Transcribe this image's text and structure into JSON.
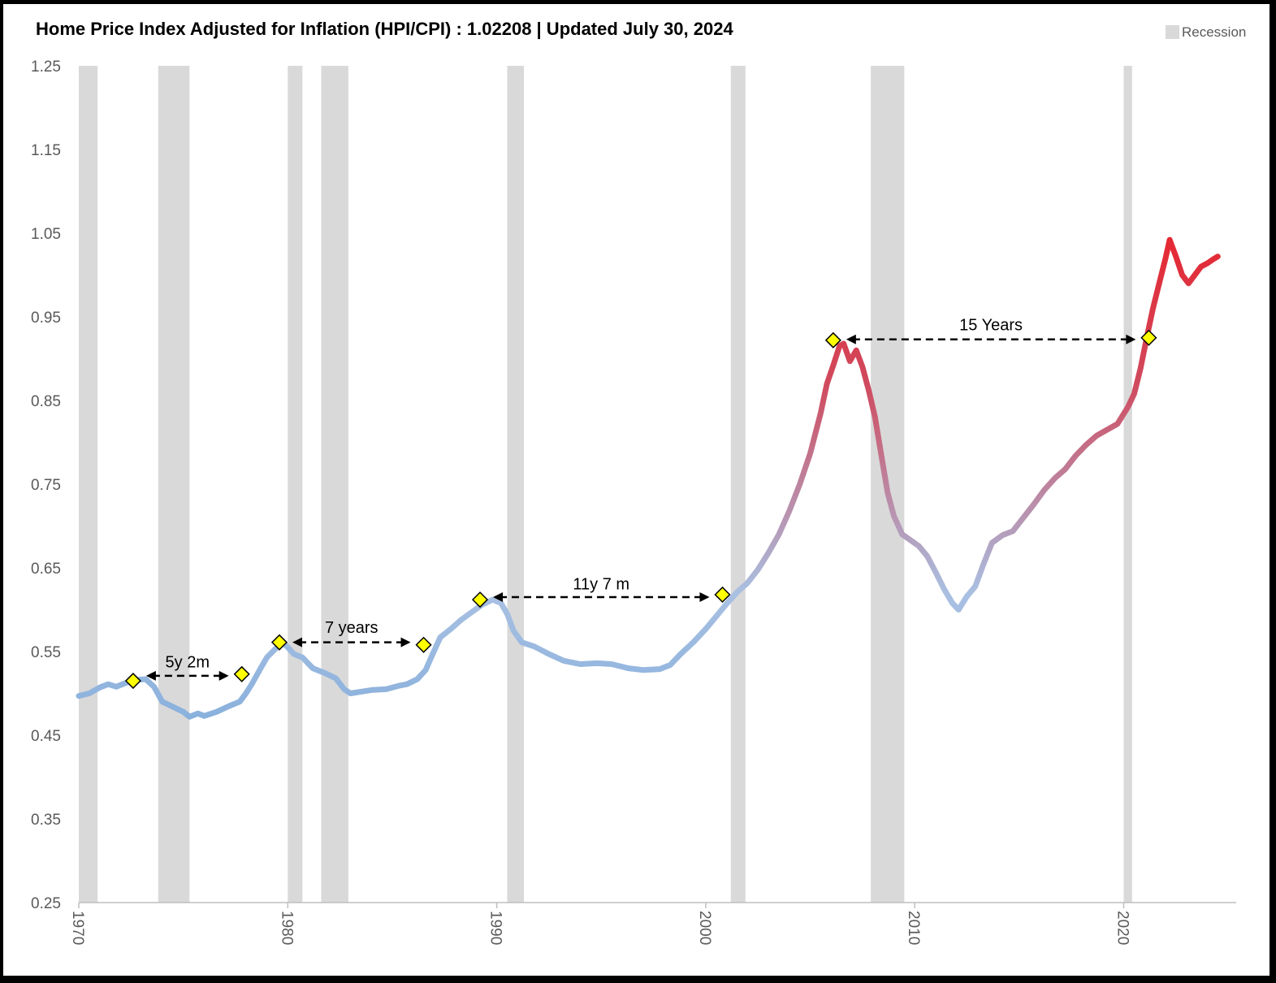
{
  "chart_data": {
    "type": "line",
    "title": "Home Price Index Adjusted for Inflation (HPI/CPI) : 1.02208 | Updated July 30, 2024",
    "xlabel": "",
    "ylabel": "",
    "xlim": [
      1970,
      2025.2
    ],
    "ylim": [
      0.25,
      1.25
    ],
    "y_ticks": [
      "0.25",
      "0.35",
      "0.45",
      "0.55",
      "0.65",
      "0.75",
      "0.85",
      "0.95",
      "1.05",
      "1.15",
      "1.25"
    ],
    "x_ticks": [
      "1970",
      "1980",
      "1990",
      "2000",
      "2010",
      "2020"
    ],
    "grid": false,
    "legend": {
      "position": "top-right",
      "entries": [
        "Recession"
      ]
    },
    "colors": {
      "recession": "#d9d9d9",
      "line_low": "#5b9bd5",
      "line_mid": "#a9c0e2",
      "line_high": "#ff0000",
      "marker_fill": "#ffff00",
      "marker_stroke": "#000000"
    },
    "recessions": [
      [
        1970.0,
        1970.9
      ],
      [
        1973.8,
        1975.3
      ],
      [
        1980.0,
        1980.7
      ],
      [
        1981.6,
        1982.9
      ],
      [
        1990.5,
        1991.3
      ],
      [
        2001.2,
        2001.9
      ],
      [
        2007.9,
        2009.5
      ],
      [
        2020.0,
        2020.4
      ]
    ],
    "series": [
      {
        "values": [
          [
            1970.0,
            0.497
          ],
          [
            1970.5,
            0.5
          ],
          [
            1971.0,
            0.507
          ],
          [
            1971.4,
            0.511
          ],
          [
            1971.8,
            0.508
          ],
          [
            1972.2,
            0.512
          ],
          [
            1972.7,
            0.516
          ],
          [
            1973.2,
            0.517
          ],
          [
            1973.6,
            0.508
          ],
          [
            1974.0,
            0.49
          ],
          [
            1974.5,
            0.484
          ],
          [
            1975.0,
            0.478
          ],
          [
            1975.3,
            0.472
          ],
          [
            1975.7,
            0.476
          ],
          [
            1976.0,
            0.473
          ],
          [
            1976.6,
            0.478
          ],
          [
            1977.2,
            0.485
          ],
          [
            1977.7,
            0.49
          ],
          [
            1978.0,
            0.5
          ],
          [
            1978.3,
            0.512
          ],
          [
            1978.7,
            0.53
          ],
          [
            1979.0,
            0.543
          ],
          [
            1979.4,
            0.553
          ],
          [
            1979.8,
            0.56
          ],
          [
            1980.0,
            0.555
          ],
          [
            1980.3,
            0.547
          ],
          [
            1980.7,
            0.543
          ],
          [
            1981.2,
            0.53
          ],
          [
            1981.8,
            0.524
          ],
          [
            1982.3,
            0.518
          ],
          [
            1982.7,
            0.505
          ],
          [
            1983.0,
            0.5
          ],
          [
            1983.5,
            0.502
          ],
          [
            1984.0,
            0.504
          ],
          [
            1984.7,
            0.505
          ],
          [
            1985.3,
            0.509
          ],
          [
            1985.7,
            0.511
          ],
          [
            1986.2,
            0.517
          ],
          [
            1986.6,
            0.528
          ],
          [
            1986.9,
            0.545
          ],
          [
            1987.3,
            0.567
          ],
          [
            1987.8,
            0.577
          ],
          [
            1988.3,
            0.588
          ],
          [
            1988.8,
            0.597
          ],
          [
            1989.3,
            0.606
          ],
          [
            1989.8,
            0.612
          ],
          [
            1990.2,
            0.608
          ],
          [
            1990.5,
            0.595
          ],
          [
            1990.8,
            0.575
          ],
          [
            1991.2,
            0.561
          ],
          [
            1991.8,
            0.556
          ],
          [
            1992.5,
            0.547
          ],
          [
            1993.2,
            0.539
          ],
          [
            1994.0,
            0.535
          ],
          [
            1994.8,
            0.536
          ],
          [
            1995.5,
            0.535
          ],
          [
            1996.3,
            0.53
          ],
          [
            1997.0,
            0.528
          ],
          [
            1997.8,
            0.529
          ],
          [
            1998.3,
            0.534
          ],
          [
            1998.8,
            0.547
          ],
          [
            1999.4,
            0.561
          ],
          [
            2000.0,
            0.577
          ],
          [
            2000.5,
            0.592
          ],
          [
            2001.0,
            0.607
          ],
          [
            2001.5,
            0.621
          ],
          [
            2002.0,
            0.632
          ],
          [
            2002.5,
            0.648
          ],
          [
            2003.0,
            0.668
          ],
          [
            2003.5,
            0.69
          ],
          [
            2004.0,
            0.718
          ],
          [
            2004.5,
            0.75
          ],
          [
            2005.0,
            0.787
          ],
          [
            2005.5,
            0.835
          ],
          [
            2005.8,
            0.87
          ],
          [
            2006.1,
            0.892
          ],
          [
            2006.4,
            0.915
          ],
          [
            2006.6,
            0.918
          ],
          [
            2006.9,
            0.897
          ],
          [
            2007.2,
            0.91
          ],
          [
            2007.5,
            0.89
          ],
          [
            2007.8,
            0.862
          ],
          [
            2008.1,
            0.83
          ],
          [
            2008.4,
            0.785
          ],
          [
            2008.7,
            0.74
          ],
          [
            2009.0,
            0.712
          ],
          [
            2009.4,
            0.69
          ],
          [
            2009.8,
            0.683
          ],
          [
            2010.2,
            0.676
          ],
          [
            2010.6,
            0.664
          ],
          [
            2011.0,
            0.645
          ],
          [
            2011.4,
            0.625
          ],
          [
            2011.8,
            0.608
          ],
          [
            2012.1,
            0.6
          ],
          [
            2012.5,
            0.616
          ],
          [
            2012.9,
            0.628
          ],
          [
            2013.3,
            0.655
          ],
          [
            2013.7,
            0.68
          ],
          [
            2014.2,
            0.689
          ],
          [
            2014.7,
            0.694
          ],
          [
            2015.2,
            0.71
          ],
          [
            2015.7,
            0.726
          ],
          [
            2016.2,
            0.743
          ],
          [
            2016.7,
            0.757
          ],
          [
            2017.2,
            0.768
          ],
          [
            2017.7,
            0.784
          ],
          [
            2018.2,
            0.797
          ],
          [
            2018.7,
            0.808
          ],
          [
            2019.2,
            0.815
          ],
          [
            2019.7,
            0.822
          ],
          [
            2020.2,
            0.842
          ],
          [
            2020.5,
            0.858
          ],
          [
            2020.8,
            0.888
          ],
          [
            2021.1,
            0.925
          ],
          [
            2021.4,
            0.96
          ],
          [
            2021.7,
            0.99
          ],
          [
            2022.0,
            1.02
          ],
          [
            2022.2,
            1.042
          ],
          [
            2022.5,
            1.022
          ],
          [
            2022.8,
            1.0
          ],
          [
            2023.1,
            0.99
          ],
          [
            2023.4,
            1.0
          ],
          [
            2023.7,
            1.01
          ],
          [
            2024.0,
            1.014
          ],
          [
            2024.3,
            1.019
          ],
          [
            2024.5,
            1.022
          ]
        ]
      }
    ],
    "markers": [
      [
        1972.6,
        0.515
      ],
      [
        1977.8,
        0.523
      ],
      [
        1979.6,
        0.561
      ],
      [
        1986.5,
        0.558
      ],
      [
        1989.2,
        0.612
      ],
      [
        2000.8,
        0.618
      ],
      [
        2006.1,
        0.922
      ],
      [
        2021.2,
        0.925
      ]
    ],
    "annotations": [
      {
        "text": "5y 2m",
        "x_start": 1972.6,
        "x_end": 1977.8,
        "y": 0.521,
        "label_y": 0.538
      },
      {
        "text": "7 years",
        "x_start": 1979.6,
        "x_end": 1986.5,
        "y": 0.561,
        "label_y": 0.579
      },
      {
        "text": "11y 7 m",
        "x_start": 1989.2,
        "x_end": 2000.8,
        "y": 0.615,
        "label_y": 0.631
      },
      {
        "text": "15 Years",
        "x_start": 2006.1,
        "x_end": 2021.2,
        "y": 0.923,
        "label_y": 0.941
      }
    ]
  }
}
